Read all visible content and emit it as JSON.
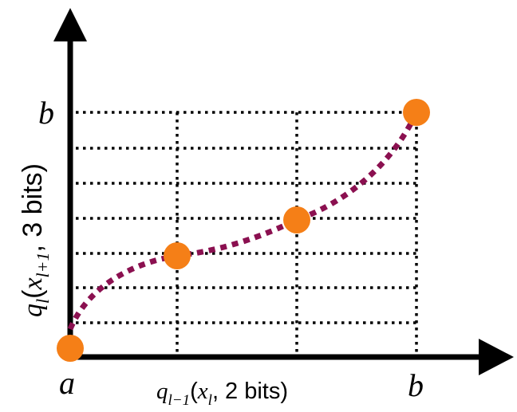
{
  "labels": {
    "y_top": "b",
    "x_right": "b",
    "origin": "a",
    "x_axis": {
      "q": "q",
      "sub": "l−1",
      "open": "(",
      "x": "x",
      "x_sub": "l",
      "rest": ", 2 bits)"
    },
    "y_axis": {
      "q": "q",
      "sub": "l",
      "open": "(",
      "x": "x",
      "x_sub": "l+1",
      "rest": ", 3 bits)"
    }
  },
  "colors": {
    "axis": "#000000",
    "grid": "#000000",
    "curve": "#8b1050",
    "points": "#f57f17"
  },
  "quantization": {
    "x_bits": 2,
    "y_bits": 3
  }
}
